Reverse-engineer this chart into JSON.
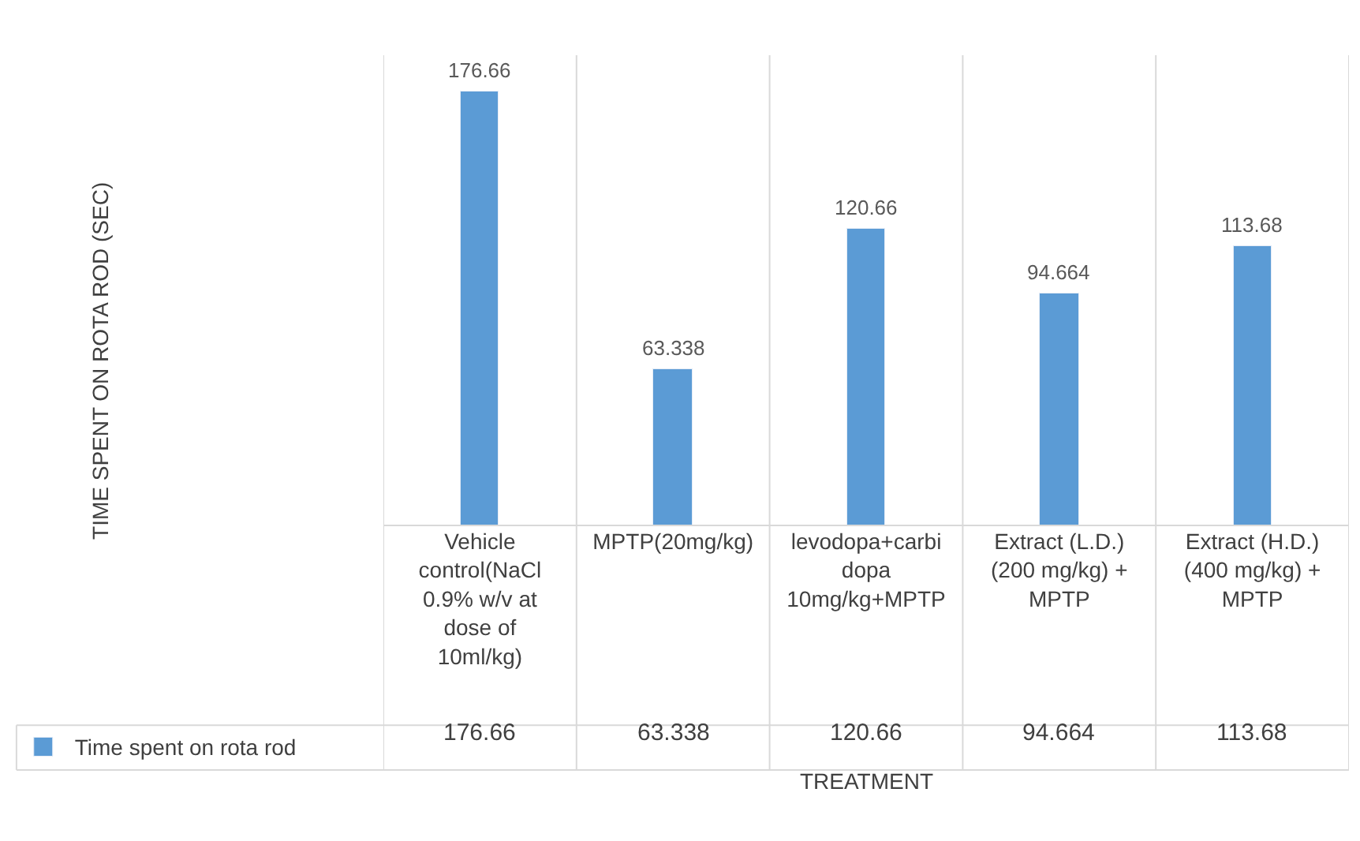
{
  "chart_data": {
    "type": "bar",
    "xlabel": "TREATMENT",
    "annotations": [
      "TIME SPENT ON ROTA ROD (SEC)"
    ],
    "categories": [
      "Vehicle control(NaCl 0.9% w/v at dose of 10ml/kg)",
      "MPTP(20mg/kg)",
      "levodopa+carbidopa 10mg/kg+MPTP",
      "Extract (L.D.) (200 mg/kg) + MPTP",
      "Extract (H.D.) (400 mg/kg) + MPTP"
    ],
    "series": [
      {
        "name": "Time spent on rota rod",
        "color": "#5b9bd5",
        "values": [
          176.66,
          63.338,
          120.66,
          94.664,
          113.68
        ],
        "value_labels": [
          "176.66",
          "63.338",
          "120.66",
          "94.664",
          "113.68"
        ]
      }
    ],
    "data_labels": true,
    "legend": "bottom left"
  }
}
